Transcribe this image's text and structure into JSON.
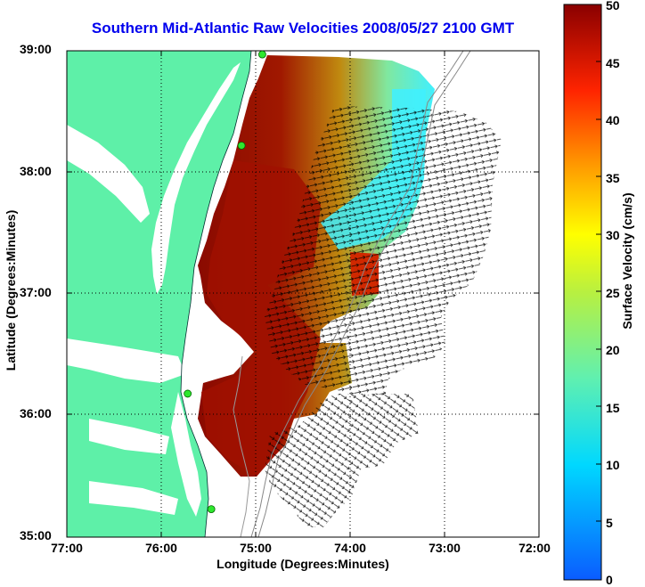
{
  "title": "Southern Mid-Atlantic Raw Velocities 2008/05/27 2100 GMT",
  "xaxis": {
    "label": "Longitude (Degrees:Minutes)",
    "ticks": [
      "77:00",
      "76:00",
      "75:00",
      "74:00",
      "73:00",
      "72:00"
    ]
  },
  "yaxis": {
    "label": "Latitude (Degrees:Minutes)",
    "ticks": [
      "39:00",
      "38:00",
      "37:00",
      "36:00",
      "35:00"
    ]
  },
  "colorbar": {
    "label": "Surface Velocity (cm/s)",
    "ticks": [
      "50",
      "45",
      "40",
      "35",
      "30",
      "25",
      "20",
      "15",
      "10",
      "5",
      "0"
    ],
    "min": 0,
    "max": 50
  },
  "colors": {
    "land": "#5ef0a8",
    "title": "#0000ee",
    "grid": "#000000",
    "station": "#2ee82e"
  },
  "chart_data": {
    "type": "heatmap",
    "x_range": [
      -77,
      -72
    ],
    "y_range": [
      35,
      39
    ],
    "grid": true,
    "field": "surface current speed with velocity vectors",
    "units": "cm/s",
    "stations": [
      {
        "lon": -74.93,
        "lat": 38.97
      },
      {
        "lon": -75.15,
        "lat": 38.22
      },
      {
        "lon": -75.72,
        "lat": 36.18
      },
      {
        "lon": -75.47,
        "lat": 35.23
      }
    ]
  }
}
